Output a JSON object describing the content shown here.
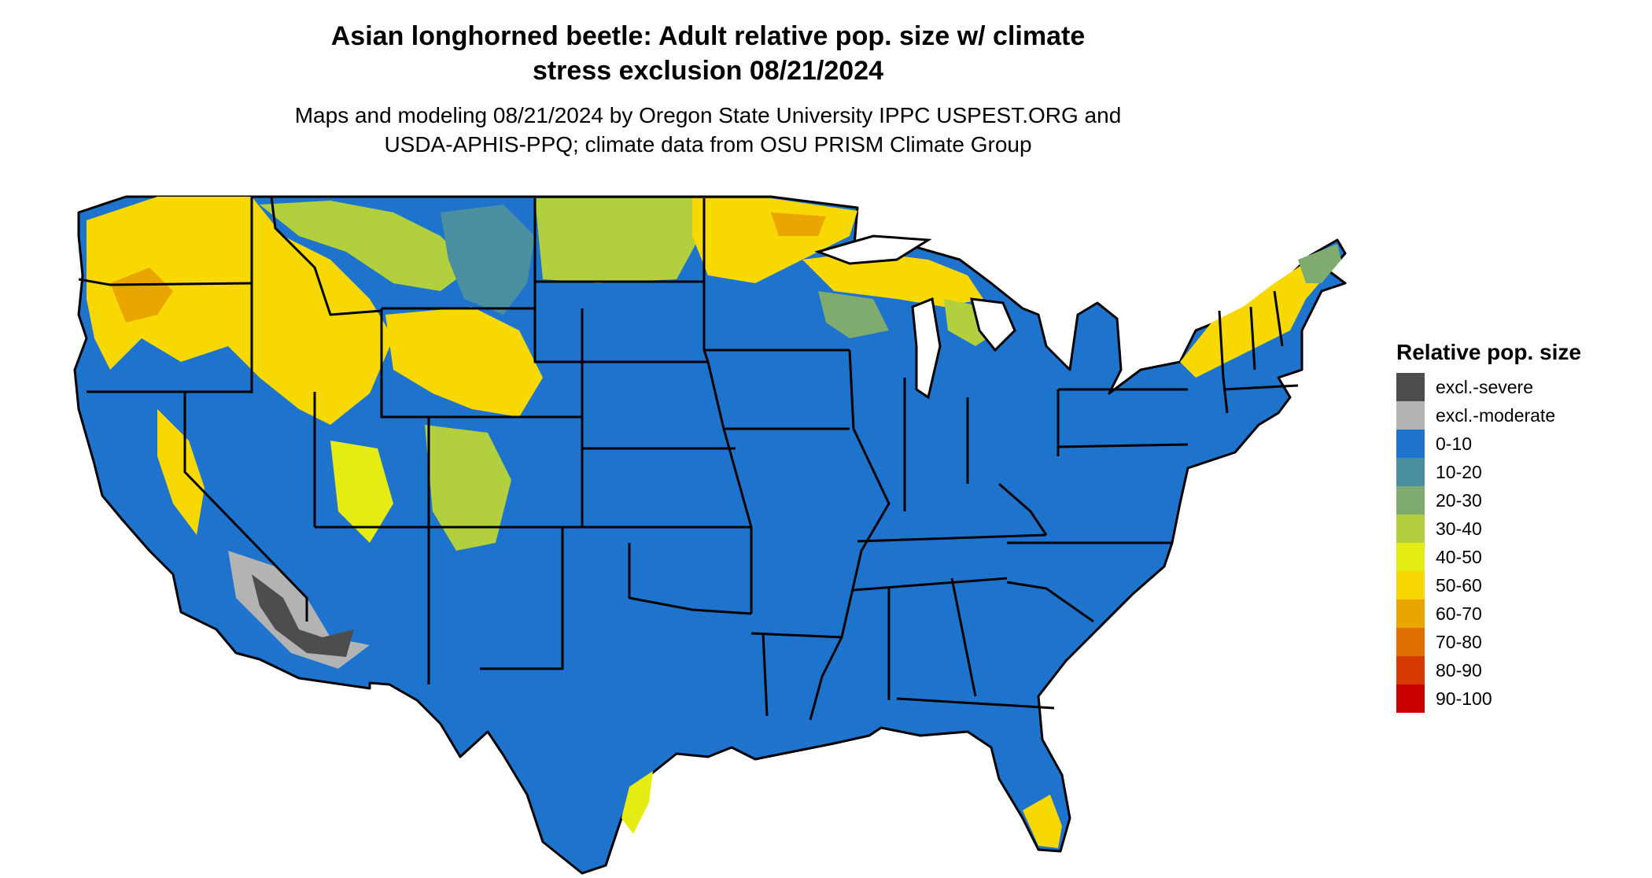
{
  "title": {
    "line1": "Asian longhorned beetle: Adult relative pop. size w/ climate",
    "line2": "stress exclusion 08/21/2024"
  },
  "subtitle": {
    "line1": "Maps and modeling 08/21/2024 by Oregon State University IPPC USPEST.ORG and",
    "line2": "USDA-APHIS-PPQ; climate data from OSU PRISM Climate Group"
  },
  "legend": {
    "title": "Relative pop. size",
    "items": [
      {
        "label": "excl.-severe",
        "color": "#4d4d4d"
      },
      {
        "label": "excl.-moderate",
        "color": "#b3b3b3"
      },
      {
        "label": "0-10",
        "color": "#1e73cc"
      },
      {
        "label": "10-20",
        "color": "#4a8fa0"
      },
      {
        "label": "20-30",
        "color": "#7fac6e"
      },
      {
        "label": "30-40",
        "color": "#b2cf3d"
      },
      {
        "label": "40-50",
        "color": "#e5ec14"
      },
      {
        "label": "50-60",
        "color": "#f7d800"
      },
      {
        "label": "60-70",
        "color": "#eba500"
      },
      {
        "label": "70-80",
        "color": "#e07000"
      },
      {
        "label": "80-90",
        "color": "#d63a00"
      },
      {
        "label": "90-100",
        "color": "#cc0000"
      }
    ]
  }
}
